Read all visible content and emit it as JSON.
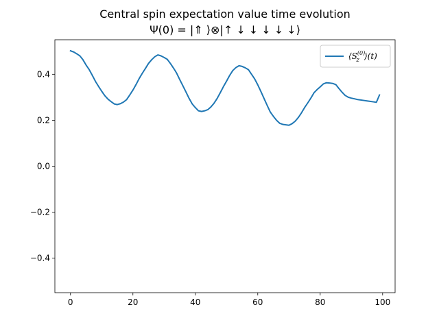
{
  "chart_data": {
    "type": "line",
    "title": "Central spin expectation value time evolution",
    "subtitle": "Ψ(0) = |⇑ ⟩⊗|↑ ↓ ↓ ↓ ↓ ↓⟩",
    "xlabel": "",
    "ylabel": "",
    "xlim": [
      -5,
      104
    ],
    "ylim": [
      -0.55,
      0.55
    ],
    "xticks": [
      0,
      20,
      40,
      60,
      80,
      100
    ],
    "xtick_labels": [
      "0",
      "20",
      "40",
      "60",
      "80",
      "100"
    ],
    "yticks": [
      -0.4,
      -0.2,
      0.0,
      0.2,
      0.4
    ],
    "ytick_labels": [
      "−0.4",
      "−0.2",
      "0.0",
      "0.2",
      "0.4"
    ],
    "grid": false,
    "legend_position": "top-right",
    "series": [
      {
        "name": "⟨S_z^(0)⟩(t)",
        "color": "#1f77b4",
        "x": [
          0,
          1,
          2,
          3,
          4,
          5,
          6,
          7,
          8,
          9,
          10,
          11,
          12,
          13,
          14,
          15,
          16,
          17,
          18,
          19,
          20,
          21,
          22,
          23,
          24,
          25,
          26,
          27,
          28,
          29,
          30,
          31,
          32,
          33,
          34,
          35,
          36,
          37,
          38,
          39,
          40,
          41,
          42,
          43,
          44,
          45,
          46,
          47,
          48,
          49,
          50,
          51,
          52,
          53,
          54,
          55,
          56,
          57,
          58,
          59,
          60,
          61,
          62,
          63,
          64,
          65,
          66,
          67,
          68,
          69,
          70,
          71,
          72,
          73,
          74,
          75,
          76,
          77,
          78,
          79,
          80,
          81,
          82,
          83,
          84,
          85,
          86,
          87,
          88,
          89,
          90,
          91,
          92,
          93,
          94,
          95,
          96,
          97,
          98,
          99
        ],
        "y": [
          0.502,
          0.497,
          0.489,
          0.48,
          0.463,
          0.44,
          0.42,
          0.395,
          0.369,
          0.347,
          0.326,
          0.307,
          0.292,
          0.281,
          0.271,
          0.268,
          0.272,
          0.279,
          0.29,
          0.31,
          0.331,
          0.355,
          0.381,
          0.404,
          0.425,
          0.447,
          0.463,
          0.476,
          0.484,
          0.48,
          0.473,
          0.465,
          0.447,
          0.427,
          0.405,
          0.377,
          0.35,
          0.323,
          0.295,
          0.271,
          0.255,
          0.241,
          0.238,
          0.241,
          0.246,
          0.258,
          0.274,
          0.295,
          0.32,
          0.346,
          0.37,
          0.395,
          0.416,
          0.429,
          0.437,
          0.434,
          0.428,
          0.42,
          0.4,
          0.38,
          0.354,
          0.325,
          0.295,
          0.265,
          0.236,
          0.217,
          0.2,
          0.187,
          0.182,
          0.18,
          0.178,
          0.185,
          0.196,
          0.212,
          0.232,
          0.255,
          0.275,
          0.296,
          0.319,
          0.333,
          0.345,
          0.358,
          0.363,
          0.362,
          0.36,
          0.355,
          0.338,
          0.322,
          0.308,
          0.3,
          0.296,
          0.293,
          0.29,
          0.288,
          0.286,
          0.284,
          0.282,
          0.28,
          0.278,
          0.31
        ]
      }
    ]
  }
}
